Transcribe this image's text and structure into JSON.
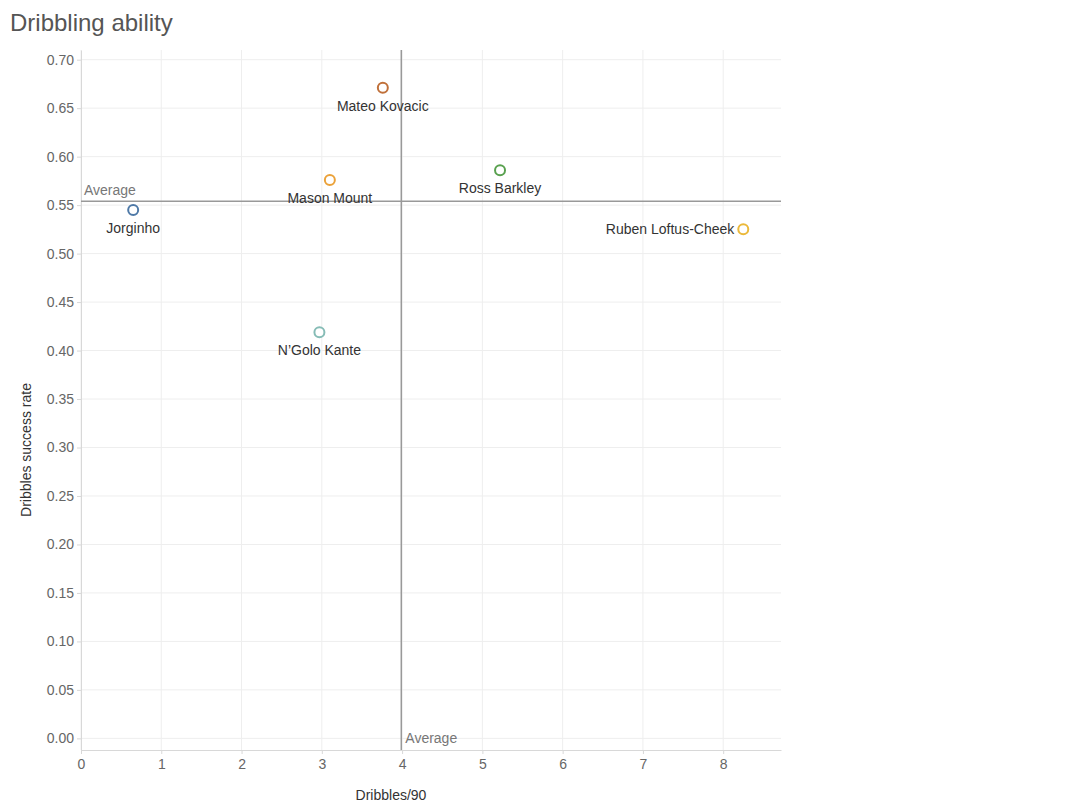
{
  "chart_data": {
    "type": "scatter",
    "title": "Dribbling ability",
    "x_label": "Dribbles/90",
    "y_label": "Dribbles success rate",
    "labels": [
      "Jorginho",
      "Mason Mount",
      "Mateo Kovacic",
      "Ross Barkley",
      "Ruben Loftus-Cheek",
      "N’Golo Kante"
    ],
    "x": [
      0.65,
      3.1,
      3.76,
      5.22,
      8.25,
      2.97
    ],
    "values": [
      0.545,
      0.576,
      0.671,
      0.586,
      0.525,
      0.419
    ],
    "colors": [
      "#4e79a7",
      "#eba23a",
      "#c0703a",
      "#59a14f",
      "#ebb93a",
      "#86bcb6"
    ],
    "marker": "open-circle",
    "reference_lines": [
      {
        "x": 3.99,
        "label": "Average"
      },
      {
        "y": 0.554,
        "label": "Average"
      }
    ],
    "xlim": [
      0,
      8.72
    ],
    "xticks": [
      0,
      1,
      2,
      3,
      4,
      5,
      6,
      7,
      8
    ],
    "ylim": [
      -0.012,
      0.71
    ],
    "yticks": [
      {
        "value": 0,
        "label": "0.00"
      },
      {
        "value": 0.05,
        "label": "0.05"
      },
      {
        "value": 0.1,
        "label": "0.10"
      },
      {
        "value": 0.15,
        "label": "0.15"
      },
      {
        "value": 0.2,
        "label": "0.20"
      },
      {
        "value": 0.25,
        "label": "0.25"
      },
      {
        "value": 0.3,
        "label": "0.30"
      },
      {
        "value": 0.35,
        "label": "0.35"
      },
      {
        "value": 0.4,
        "label": "0.40"
      },
      {
        "value": 0.45,
        "label": "0.45"
      },
      {
        "value": 0.5,
        "label": "0.50"
      },
      {
        "value": 0.55,
        "label": "0.55"
      },
      {
        "value": 0.6,
        "label": "0.60"
      },
      {
        "value": 0.65,
        "label": "0.65"
      },
      {
        "value": 0.7,
        "label": "0.70"
      }
    ],
    "grid": true
  }
}
